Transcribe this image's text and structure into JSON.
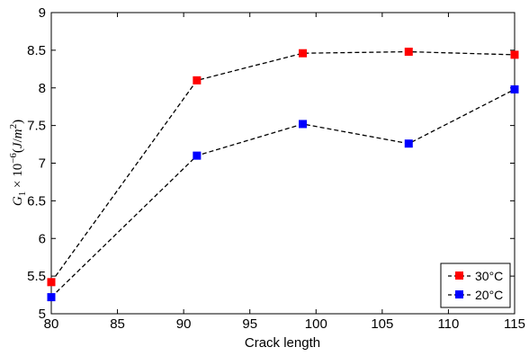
{
  "chart_data": {
    "type": "line",
    "x": [
      80,
      91,
      99,
      107,
      115
    ],
    "series": [
      {
        "name": "30°C",
        "values": [
          5.42,
          8.1,
          8.46,
          8.48,
          8.44
        ],
        "color": "#ff0000"
      },
      {
        "name": "20°C",
        "values": [
          5.22,
          7.1,
          7.52,
          7.26,
          7.98
        ],
        "color": "#0000ff"
      }
    ],
    "line_style": "dashed",
    "line_color": "#000000",
    "marker": "square",
    "xlabel": "Crack length",
    "ylabel": {
      "symbol": "G",
      "subscript": "1",
      "times": " × 10",
      "exponent": "−6",
      "units_open": "(",
      "unit_j": "J",
      "slash": "/",
      "unit_m": "m",
      "unit_m_exp": "2",
      "units_close": ")"
    },
    "xlim": [
      80,
      115
    ],
    "ylim": [
      5,
      9
    ],
    "xticks": [
      "80",
      "85",
      "90",
      "95",
      "100",
      "105",
      "110",
      "115"
    ],
    "yticks": [
      "5",
      "5.5",
      "6",
      "6.5",
      "7",
      "7.5",
      "8",
      "8.5",
      "9"
    ],
    "grid": false,
    "legend_position": "bottom-right"
  }
}
